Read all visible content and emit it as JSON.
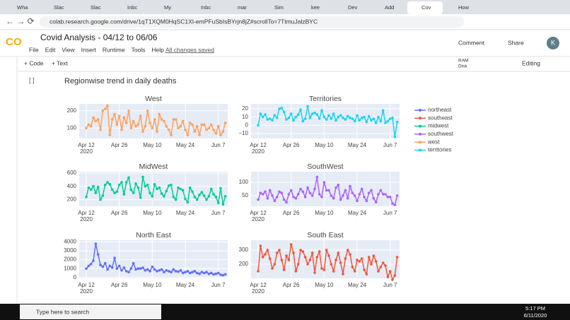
{
  "ui": {
    "tabs": [
      "Wha",
      "Slac",
      "Slac",
      "Inbc",
      "My",
      "Inbc",
      "mar",
      "Sim",
      "kee",
      "Dev",
      "Add",
      "Cov",
      "How"
    ],
    "url": "colab.research.google.com/drive/1qT1XQM0HqSC1XI-emPFuSbIsBYrjn8jZ#scrollTo=7TtmuJalzBYC",
    "logo": "CO",
    "notebook_title": "Covid Analysis - 04/12 to 06/06",
    "menu": [
      "File",
      "Edit",
      "View",
      "Insert",
      "Runtime",
      "Tools",
      "Help"
    ],
    "saved": "All changes saved",
    "comment": "Comment",
    "share": "Share",
    "avatar": "K",
    "add_code": "+ Code",
    "add_text": "+ Text",
    "ram": "RAM",
    "disk": "Disk",
    "editing": "Editing",
    "cell_run": "[ ]",
    "heading": "Regionwise trend in daily deaths",
    "search": "Type here to search",
    "time": "5:17 PM",
    "date": "6/11/2020"
  },
  "chart_data": {
    "type": "line",
    "x": [
      "2020-04-12",
      "2020-04-13",
      "2020-04-14",
      "2020-04-15",
      "2020-04-16",
      "2020-04-17",
      "2020-04-18",
      "2020-04-19",
      "2020-04-20",
      "2020-04-21",
      "2020-04-22",
      "2020-04-23",
      "2020-04-24",
      "2020-04-25",
      "2020-04-26",
      "2020-04-27",
      "2020-04-28",
      "2020-04-29",
      "2020-04-30",
      "2020-05-01",
      "2020-05-02",
      "2020-05-03",
      "2020-05-04",
      "2020-05-05",
      "2020-05-06",
      "2020-05-07",
      "2020-05-08",
      "2020-05-09",
      "2020-05-10",
      "2020-05-11",
      "2020-05-12",
      "2020-05-13",
      "2020-05-14",
      "2020-05-15",
      "2020-05-16",
      "2020-05-17",
      "2020-05-18",
      "2020-05-19",
      "2020-05-20",
      "2020-05-21",
      "2020-05-22",
      "2020-05-23",
      "2020-05-24",
      "2020-05-25",
      "2020-05-26",
      "2020-05-27",
      "2020-05-28",
      "2020-05-29",
      "2020-05-30",
      "2020-05-31",
      "2020-06-01",
      "2020-06-02",
      "2020-06-03",
      "2020-06-04",
      "2020-06-05",
      "2020-06-06",
      "2020-06-07",
      "2020-06-08",
      "2020-06-09",
      "2020-06-10"
    ],
    "xlim": [
      "2020-04-09",
      "2020-06-11"
    ],
    "xticks": [
      {
        "value": "2020-04-12",
        "label": "Apr 12\n2020"
      },
      {
        "value": "2020-04-26",
        "label": "Apr 26"
      },
      {
        "value": "2020-05-10",
        "label": "May 10"
      },
      {
        "value": "2020-05-24",
        "label": "May 24"
      },
      {
        "value": "2020-06-07",
        "label": "Jun 7"
      }
    ],
    "grid": true,
    "series": [
      {
        "name": "northeast",
        "title": "North East",
        "color": "#636efa",
        "ylim": [
          -100,
          4200
        ],
        "yticks": [
          0,
          1000,
          2000,
          3000,
          4000
        ],
        "values": [
          1000,
          1300,
          1500,
          1900,
          3800,
          2600,
          1400,
          1200,
          1600,
          900,
          1300,
          1100,
          2200,
          1000,
          1300,
          800,
          1100,
          700,
          600,
          1000,
          1600,
          900,
          1000,
          1000,
          1100,
          800,
          900,
          700,
          1200,
          900,
          700,
          800,
          900,
          600,
          800,
          700,
          600,
          900,
          700,
          650,
          800,
          500,
          600,
          700,
          500,
          600,
          700,
          500,
          400,
          600,
          500,
          600,
          400,
          500,
          350,
          400,
          500,
          300,
          250,
          350
        ]
      },
      {
        "name": "southeast",
        "title": "South East",
        "color": "#ef553b",
        "ylim": [
          100,
          370
        ],
        "yticks": [
          200,
          300
        ],
        "values": [
          150,
          330,
          250,
          270,
          300,
          240,
          170,
          200,
          280,
          300,
          230,
          160,
          260,
          230,
          340,
          280,
          150,
          200,
          300,
          290,
          250,
          200,
          230,
          280,
          140,
          250,
          290,
          170,
          160,
          300,
          260,
          200,
          150,
          230,
          280,
          210,
          130,
          240,
          300,
          270,
          180,
          150,
          230,
          220,
          240,
          160,
          130,
          250,
          200,
          260,
          220,
          150,
          180,
          210,
          190,
          110,
          150,
          90,
          120,
          250
        ]
      },
      {
        "name": "midwest",
        "title": "MidWest",
        "color": "#00cc96",
        "ylim": [
          100,
          620
        ],
        "yticks": [
          200,
          400,
          600
        ],
        "values": [
          240,
          380,
          350,
          400,
          300,
          390,
          200,
          260,
          420,
          460,
          430,
          350,
          300,
          320,
          420,
          460,
          280,
          460,
          530,
          350,
          300,
          440,
          380,
          230,
          540,
          400,
          420,
          300,
          250,
          430,
          360,
          380,
          290,
          250,
          330,
          410,
          420,
          240,
          200,
          380,
          360,
          340,
          210,
          160,
          380,
          320,
          240,
          200,
          270,
          310,
          260,
          200,
          250,
          360,
          280,
          240,
          150,
          370,
          130,
          250
        ]
      },
      {
        "name": "southwest",
        "title": "SouthWest",
        "color": "#ab63fa",
        "ylim": [
          10,
          140
        ],
        "yticks": [
          50,
          100
        ],
        "values": [
          35,
          60,
          55,
          65,
          40,
          70,
          50,
          30,
          45,
          65,
          60,
          35,
          25,
          55,
          70,
          45,
          40,
          55,
          75,
          65,
          45,
          80,
          60,
          50,
          75,
          120,
          55,
          45,
          100,
          70,
          70,
          50,
          40,
          80,
          90,
          35,
          50,
          70,
          40,
          85,
          60,
          50,
          30,
          55,
          75,
          45,
          30,
          60,
          70,
          40,
          25,
          55,
          70,
          55,
          55,
          45,
          45,
          20,
          15,
          50
        ]
      },
      {
        "name": "west",
        "title": "West",
        "color": "#ffa15a",
        "ylim": [
          40,
          240
        ],
        "yticks": [
          100,
          200
        ],
        "values": [
          100,
          120,
          110,
          160,
          140,
          150,
          90,
          200,
          210,
          230,
          60,
          150,
          180,
          120,
          170,
          90,
          160,
          130,
          200,
          100,
          140,
          110,
          120,
          170,
          80,
          110,
          200,
          130,
          100,
          150,
          80,
          180,
          150,
          140,
          110,
          90,
          60,
          150,
          150,
          100,
          110,
          140,
          90,
          60,
          130,
          120,
          80,
          110,
          60,
          120,
          120,
          90,
          100,
          120,
          90,
          70,
          110,
          60,
          80,
          130
        ]
      },
      {
        "name": "territories",
        "title": "Territories",
        "color": "#19d3f3",
        "ylim": [
          -16,
          26
        ],
        "yticks": [
          {
            "value": -10,
            "label": "−10"
          },
          0,
          10,
          20
        ],
        "values": [
          0,
          14,
          10,
          13,
          7,
          8,
          6,
          12,
          9,
          20,
          21,
          16,
          7,
          9,
          14,
          6,
          10,
          13,
          19,
          5,
          8,
          23,
          9,
          14,
          15,
          13,
          8,
          18,
          10,
          7,
          12,
          8,
          14,
          6,
          10,
          12,
          9,
          7,
          11,
          9,
          8,
          5,
          12,
          6,
          9,
          10,
          4,
          11,
          6,
          8,
          3,
          10,
          5,
          18,
          3,
          5,
          8,
          9,
          -14,
          4
        ]
      }
    ]
  }
}
